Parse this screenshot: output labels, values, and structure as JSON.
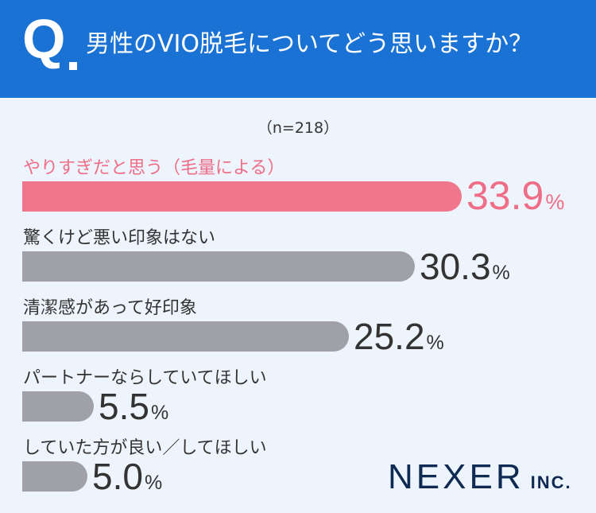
{
  "header": {
    "q_mark": "Q",
    "question": "男性のVIO脱毛についてどう思いますか？"
  },
  "sample": "（n=218）",
  "logo": {
    "name": "NEXER",
    "suffix": "INC."
  },
  "colors": {
    "header_bg": "#1a73d4",
    "highlight": "#f0778b",
    "bar": "#9fa1a6",
    "background": "#eef4fb"
  },
  "chart_data": {
    "type": "bar",
    "orientation": "horizontal",
    "title": "男性のVIO脱毛についてどう思いますか？",
    "unit": "%",
    "categories": [
      "やりすぎだと思う（毛量による）",
      "驚くけど悪い印象はない",
      "清潔感があって好印象",
      "パートナーならしていてほしい",
      "していた方が良い／してほしい"
    ],
    "values": [
      33.9,
      30.3,
      25.2,
      5.5,
      5.0
    ],
    "value_labels": [
      "33.9",
      "30.3",
      "25.2",
      "5.5",
      "5.0"
    ],
    "highlight_index": 0
  }
}
